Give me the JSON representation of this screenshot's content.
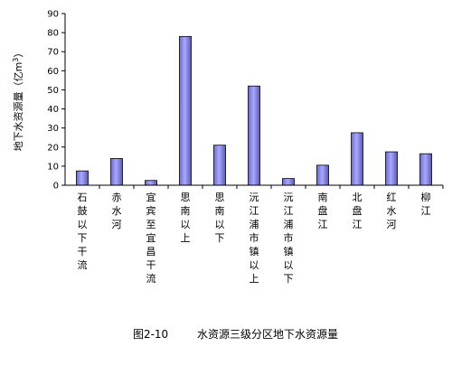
{
  "caption": {
    "figure_no": "图2-10",
    "title": "水资源三级分区地下水资源量"
  },
  "chart_data": {
    "type": "bar",
    "ylabel_main": "地下水资源量（亿m",
    "ylabel_sup": "3",
    "ylabel_close": "）",
    "ylim": [
      0,
      90
    ],
    "yticks": [
      "0",
      "10",
      "20",
      "30",
      "40",
      "50",
      "60",
      "70",
      "80",
      "90"
    ],
    "categories": [
      "石鼓以下干流",
      "赤水河",
      "宜宾至宜昌干流",
      "思南以上",
      "思南以下",
      "沅江浦市镇以上",
      "沅江浦市镇以下",
      "南盘江",
      "北盘江",
      "红水河",
      "柳江"
    ],
    "values": [
      7.5,
      14,
      2.5,
      78,
      21,
      52,
      3.5,
      10.5,
      27.5,
      17.5,
      16.5
    ],
    "bar_color": "#9999ff",
    "grid": false,
    "legend": "none"
  }
}
